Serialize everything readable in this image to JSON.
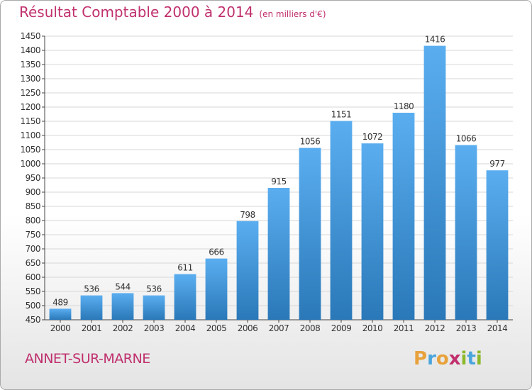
{
  "header": {
    "title": "Résultat Comptable 2000 à 2014",
    "subtitle": "(en milliers d'€)"
  },
  "footer": {
    "location": "ANNET-SUR-MARNE",
    "logo_letters": [
      "P",
      "r",
      "o",
      "x",
      "i",
      "t",
      "i"
    ],
    "logo_colors": [
      "#e8a23b",
      "#4aa5dc",
      "#e8a23b",
      "#c0306d",
      "#8cb82b",
      "#4aa5dc",
      "#8cb82b"
    ]
  },
  "colors": {
    "bar_light": "#5aaef0",
    "bar_dark": "#2a78b8",
    "title": "#c0306d",
    "grid": "#d7d7d7",
    "axis": "#444444"
  },
  "chart_data": {
    "type": "bar",
    "title": "Résultat Comptable 2000 à 2014",
    "subtitle": "(en milliers d'€)",
    "xlabel": "",
    "ylabel": "",
    "categories": [
      "2000",
      "2001",
      "2002",
      "2003",
      "2004",
      "2005",
      "2006",
      "2007",
      "2008",
      "2009",
      "2010",
      "2011",
      "2012",
      "2013",
      "2014"
    ],
    "values": [
      489,
      536,
      544,
      536,
      611,
      666,
      798,
      915,
      1056,
      1151,
      1072,
      1180,
      1416,
      1066,
      977
    ],
    "ylim": [
      450,
      1450
    ],
    "yticks": [
      450,
      500,
      550,
      600,
      650,
      700,
      750,
      800,
      850,
      900,
      950,
      1000,
      1050,
      1100,
      1150,
      1200,
      1250,
      1300,
      1350,
      1400,
      1450
    ],
    "grid": true,
    "legend": "none"
  }
}
